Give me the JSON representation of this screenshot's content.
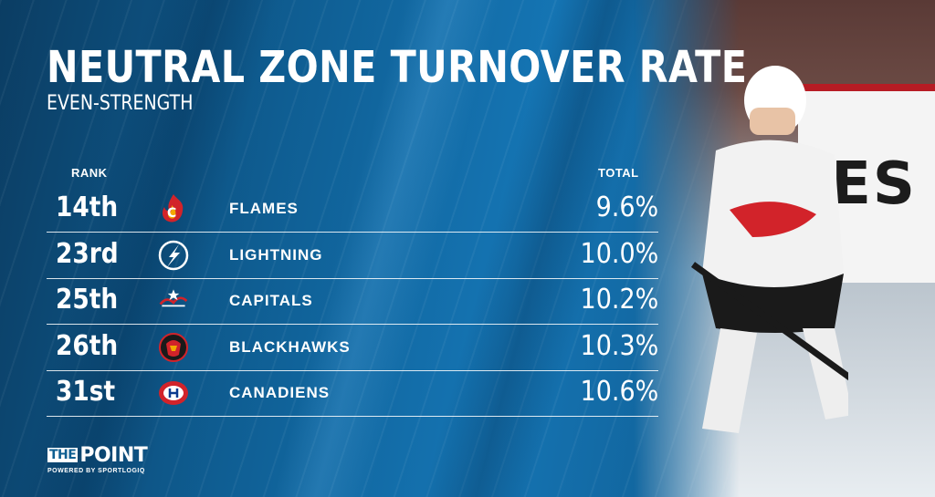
{
  "title": "NEUTRAL ZONE TURNOVER RATE",
  "subtitle": "EVEN-STRENGTH",
  "columns": {
    "rank": "RANK",
    "total": "TOTAL"
  },
  "chart_data": {
    "type": "table",
    "title": "NEUTRAL ZONE TURNOVER RATE",
    "subtitle": "EVEN-STRENGTH",
    "columns": [
      "RANK",
      "TOTAL"
    ],
    "rows": [
      {
        "rank": "14th",
        "team": "FLAMES",
        "total": "9.6%",
        "value": 9.6,
        "logo": "flames-logo"
      },
      {
        "rank": "23rd",
        "team": "LIGHTNING",
        "total": "10.0%",
        "value": 10.0,
        "logo": "lightning-logo"
      },
      {
        "rank": "25th",
        "team": "CAPITALS",
        "total": "10.2%",
        "value": 10.2,
        "logo": "capitals-logo"
      },
      {
        "rank": "26th",
        "team": "BLACKHAWKS",
        "total": "10.3%",
        "value": 10.3,
        "logo": "blackhawks-logo"
      },
      {
        "rank": "31st",
        "team": "CANADIENS",
        "total": "10.6%",
        "value": 10.6,
        "logo": "canadiens-logo"
      }
    ]
  },
  "photo": {
    "board_text": "ES"
  },
  "brand": {
    "the": "THE",
    "point": "POINT",
    "powered_by": "POWERED BY SPORTLOGIQ"
  },
  "colors": {
    "background": "#0f5f92",
    "text": "#ffffff",
    "flames_red": "#d2232a",
    "lightning_blue": "#0a4a8f"
  }
}
